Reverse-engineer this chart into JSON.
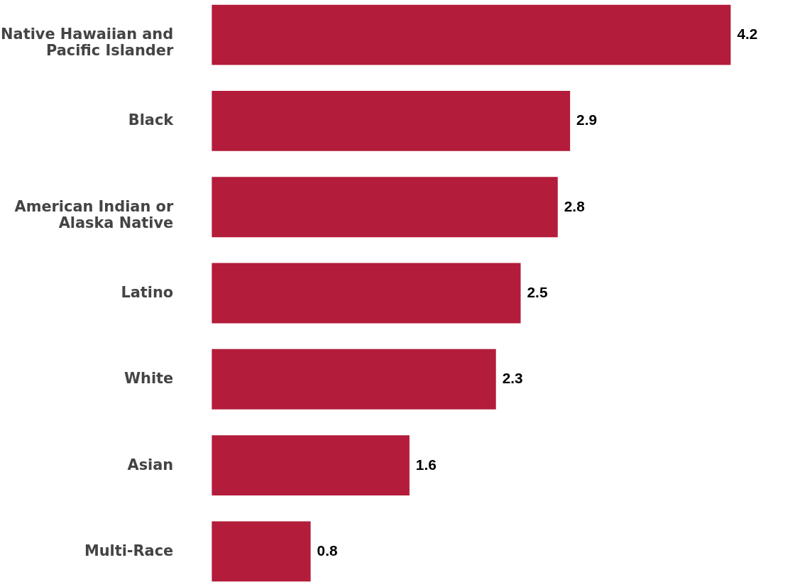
{
  "chart_data": {
    "type": "bar",
    "orientation": "horizontal",
    "categories": [
      "Native Hawaiian and Pacific Islander",
      "Black",
      "American Indian or Alaska Native",
      "Latino",
      "White",
      "Asian",
      "Multi-Race"
    ],
    "values": [
      4.2,
      2.9,
      2.8,
      2.5,
      2.3,
      1.6,
      0.8
    ],
    "color": "#b31c3a",
    "data_labels": true
  }
}
